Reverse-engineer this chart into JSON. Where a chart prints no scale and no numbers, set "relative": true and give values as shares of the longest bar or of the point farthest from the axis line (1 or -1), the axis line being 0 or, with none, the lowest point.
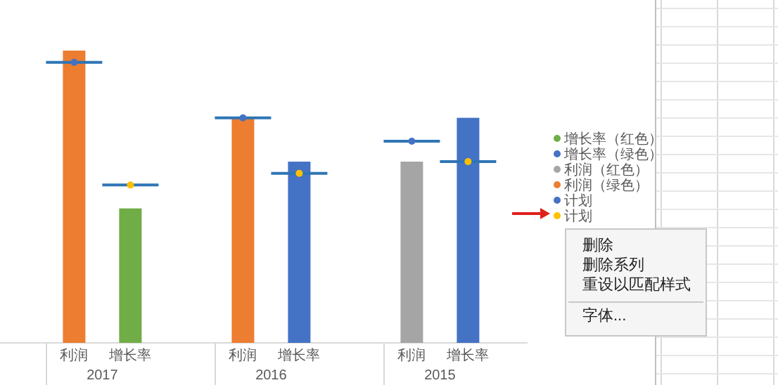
{
  "chart_data": {
    "type": "bar",
    "relative": true,
    "categories": [
      "利润",
      "增长率",
      "利润",
      "增长率",
      "利润",
      "增长率"
    ],
    "series": [
      {
        "name": "增长率（红色）",
        "color": "#70ad47",
        "values": [
          null,
          0.46,
          null,
          null,
          null,
          null
        ]
      },
      {
        "name": "增长率（绿色）",
        "color": "#4472c4",
        "values": [
          null,
          null,
          null,
          0.62,
          null,
          0.77
        ]
      },
      {
        "name": "利润（红色）",
        "color": "#a5a5a5",
        "values": [
          null,
          null,
          null,
          null,
          0.62,
          null
        ]
      },
      {
        "name": "利润（绿色）",
        "color": "#ed7d31",
        "values": [
          1.0,
          null,
          0.77,
          null,
          null,
          null
        ]
      },
      {
        "name": "计划",
        "type": "scatter",
        "color": "#4472c4",
        "values": [
          0.96,
          null,
          0.77,
          null,
          0.69,
          null
        ]
      },
      {
        "name": "计划",
        "type": "scatter",
        "color": "#ffc000",
        "values": [
          null,
          0.54,
          null,
          0.58,
          null,
          0.62
        ]
      }
    ],
    "legend": "right",
    "annotations": [
      "2017",
      "2016",
      "2015",
      "删除",
      "删除系列",
      "重设以匹配样式",
      "字体..."
    ]
  }
}
